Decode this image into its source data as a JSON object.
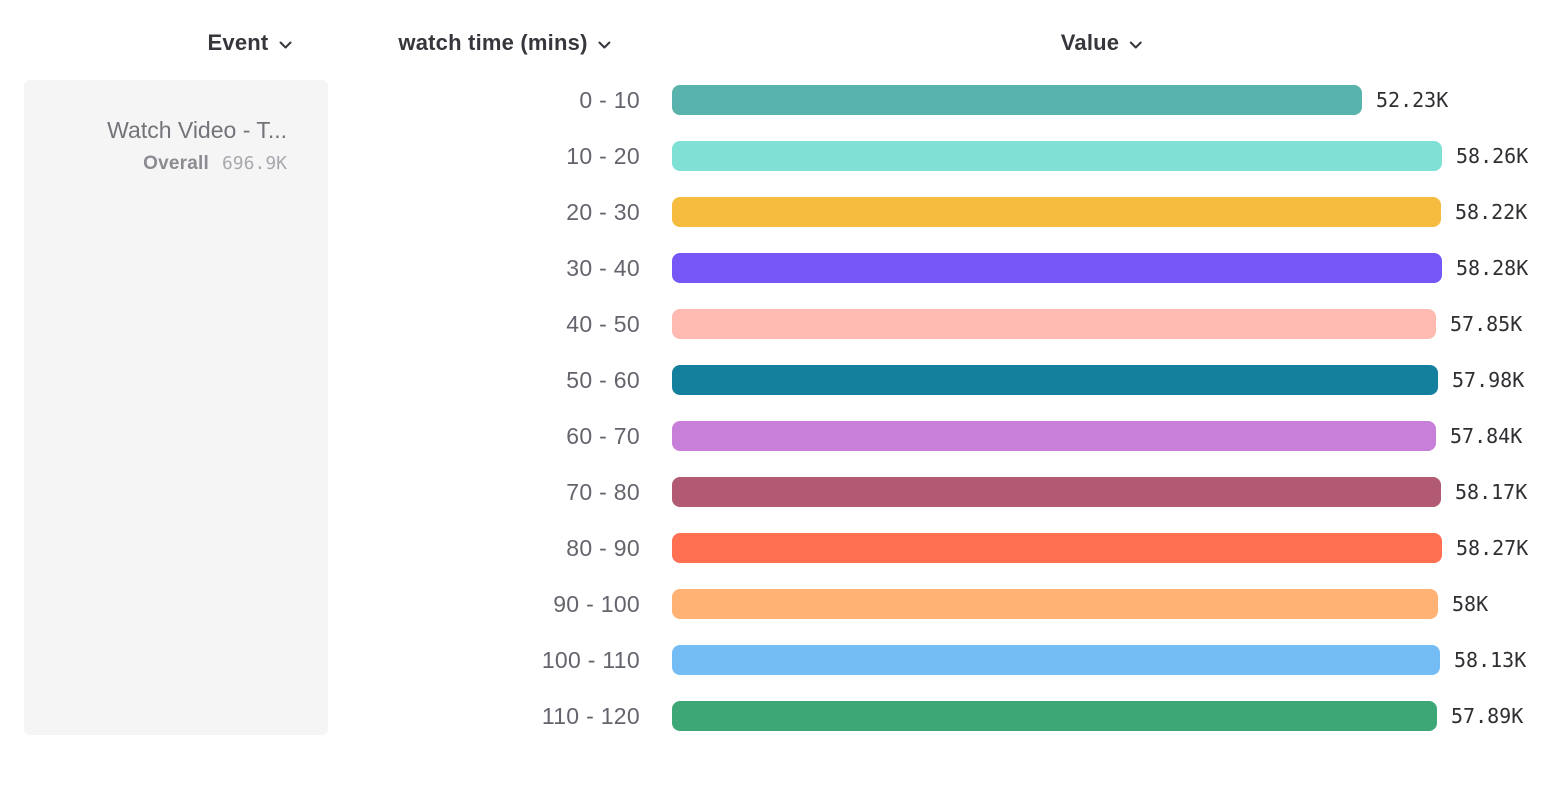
{
  "header": {
    "columns": [
      {
        "label": "Event"
      },
      {
        "label": "watch time (mins)"
      },
      {
        "label": "Value"
      }
    ]
  },
  "event_panel": {
    "title": "Watch Video - T...",
    "overall_label": "Overall",
    "overall_value": "696.9K"
  },
  "chart_data": {
    "type": "bar",
    "orientation": "horizontal",
    "title": "",
    "xlabel": "Value",
    "ylabel": "watch time (mins)",
    "xlim_k": [
      0,
      58.28
    ],
    "grid": false,
    "legend": false,
    "categories": [
      "0 - 10",
      "10 - 20",
      "20 - 30",
      "30 - 40",
      "40 - 50",
      "50 - 60",
      "60 - 70",
      "70 - 80",
      "80 - 90",
      "90 - 100",
      "100 - 110",
      "110 - 120"
    ],
    "values_k": [
      52.23,
      58.26,
      58.22,
      58.28,
      57.85,
      57.98,
      57.84,
      58.17,
      58.27,
      58.0,
      58.13,
      57.89
    ],
    "value_labels": [
      "52.23K",
      "58.26K",
      "58.22K",
      "58.28K",
      "57.85K",
      "57.98K",
      "57.84K",
      "58.17K",
      "58.27K",
      "58K",
      "58.13K",
      "57.89K"
    ],
    "colors": [
      "#57B3AB",
      "#7FE0D6",
      "#F5BC40",
      "#7557F7",
      "#FFBAB1",
      "#15809E",
      "#C77FD9",
      "#B25A72",
      "#FF7053",
      "#FFB273",
      "#74BCF4",
      "#3DA876"
    ]
  },
  "icons": {
    "chevron_down": "chevron-down"
  }
}
